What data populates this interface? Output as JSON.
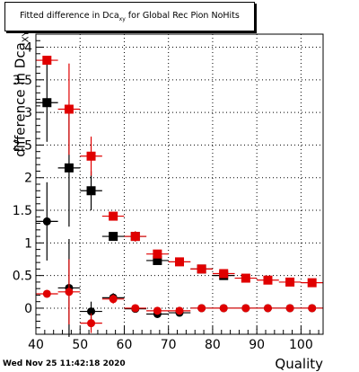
{
  "chart_data": {
    "type": "scatter",
    "title": "Fitted difference in Dca",
    "title_sub": "xy",
    "title_suffix": " for Global Rec Pion NoHits",
    "xlabel": "Quality",
    "ylabel": "difference in Dca",
    "ylabel_sub": "XY",
    "xlim": [
      40,
      105
    ],
    "ylim": [
      -0.4,
      4.2
    ],
    "xticks": [
      "40",
      "50",
      "60",
      "70",
      "80",
      "90",
      "100"
    ],
    "yticks": [
      "0",
      "0.5",
      "1",
      "1.5",
      "2",
      "2.5",
      "3",
      "3.5",
      "4"
    ],
    "grid": true,
    "x": [
      42.5,
      47.5,
      52.5,
      57.5,
      62.5,
      67.5,
      72.5,
      77.5,
      82.5,
      87.5,
      92.5,
      97.5,
      102.5
    ],
    "xerr": 2.5,
    "series": [
      {
        "marker": "square",
        "color": "#000000",
        "values": [
          3.15,
          2.15,
          1.8,
          1.1,
          1.1,
          0.73,
          null,
          0.6,
          0.5,
          null,
          null,
          null,
          null
        ],
        "errors": [
          0.6,
          0.9,
          0.3,
          0.06,
          0.05,
          0.04,
          0.0,
          0.03,
          0.02,
          0.0,
          0.0,
          0.0,
          0.0
        ]
      },
      {
        "marker": "square",
        "color": "#e00000",
        "values": [
          3.8,
          3.05,
          2.33,
          1.41,
          1.1,
          0.83,
          0.71,
          0.6,
          0.53,
          0.46,
          0.43,
          0.4,
          0.39
        ],
        "errors": [
          0.06,
          0.7,
          0.3,
          0.06,
          0.08,
          0.04,
          0.03,
          0.03,
          0.02,
          0.02,
          0.02,
          0.02,
          0.02
        ]
      },
      {
        "marker": "circle",
        "color": "#000000",
        "values": [
          1.33,
          0.31,
          -0.05,
          0.16,
          -0.01,
          -0.09,
          -0.07,
          0.0,
          0.0,
          0.0,
          0.0,
          0.0,
          0.0
        ],
        "errors": [
          0.6,
          0.75,
          0.15,
          0.07,
          0.03,
          0.03,
          0.03,
          0.02,
          0.02,
          0.02,
          0.02,
          0.02,
          0.02
        ]
      },
      {
        "marker": "circle",
        "color": "#e00000",
        "values": [
          0.22,
          0.25,
          -0.23,
          0.14,
          0.0,
          -0.04,
          -0.04,
          0.0,
          0.0,
          0.0,
          0.0,
          0.0,
          0.0
        ],
        "errors": [
          0.0,
          0.5,
          0.15,
          0.07,
          0.03,
          0.03,
          0.03,
          0.02,
          0.02,
          0.02,
          0.02,
          0.02,
          0.02
        ]
      }
    ]
  },
  "timestamp": "Wed Nov 25 11:42:18 2020"
}
